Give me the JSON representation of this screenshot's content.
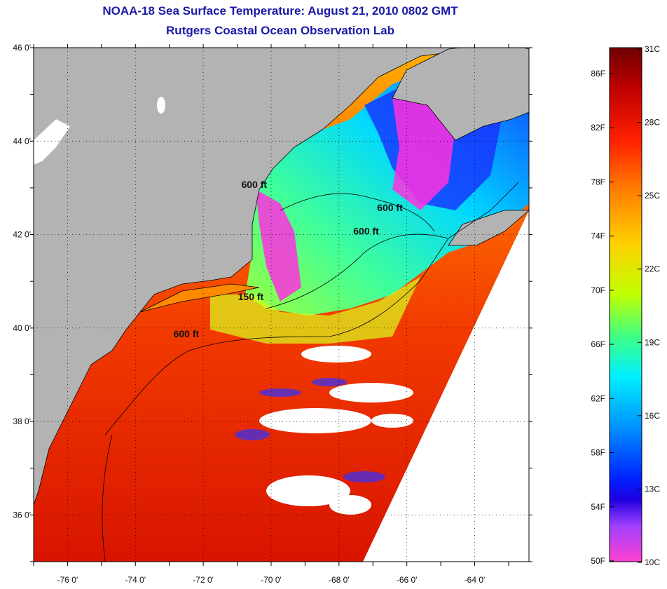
{
  "title": {
    "line1": "NOAA-18 Sea Surface Temperature:  August 21, 2010 0802 GMT",
    "line2": "Rutgers Coastal Ocean Observation Lab"
  },
  "axes": {
    "lat_labels": [
      "46 0'",
      "44 0'",
      "42 0'",
      "40 0'",
      "38 0'",
      "36 0'"
    ],
    "lat_values": [
      46,
      44,
      42,
      40,
      38,
      36
    ],
    "lon_labels": [
      "-76 0'",
      "-74 0'",
      "-72 0'",
      "-70 0'",
      "-68 0'",
      "-66 0'",
      "-64 0'"
    ],
    "lon_values": [
      -76,
      -74,
      -72,
      -70,
      -68,
      -66,
      -64
    ],
    "lat_range": [
      35,
      46
    ],
    "lon_range": [
      -77,
      -62.4
    ]
  },
  "depth_labels": [
    {
      "text": "600 ft",
      "lon": -70.5,
      "lat": 43.0
    },
    {
      "text": "600 ft",
      "lon": -66.5,
      "lat": 42.5
    },
    {
      "text": "600 ft",
      "lon": -67.2,
      "lat": 42.0
    },
    {
      "text": "150 ft",
      "lon": -70.6,
      "lat": 40.6
    },
    {
      "text": "600 ft",
      "lon": -72.5,
      "lat": 39.8
    }
  ],
  "colorbar": {
    "fahrenheit": [
      "86F",
      "82F",
      "78F",
      "74F",
      "70F",
      "66F",
      "62F",
      "58F",
      "54F",
      "50F"
    ],
    "celsius": [
      "31C",
      "28C",
      "25C",
      "22C",
      "19C",
      "16C",
      "13C",
      "10C"
    ],
    "colors": [
      "#7a0000",
      "#d40000",
      "#ff3a00",
      "#ff8a00",
      "#ffd000",
      "#b8ff00",
      "#40ff80",
      "#00f0ff",
      "#00a0ff",
      "#0040ff",
      "#0000e0",
      "#8040ff",
      "#ff20ff",
      "#ff40d0"
    ]
  },
  "colors": {
    "land": "#b3b3b3",
    "no_data": "#ffffff",
    "title": "#1a1aa6"
  }
}
